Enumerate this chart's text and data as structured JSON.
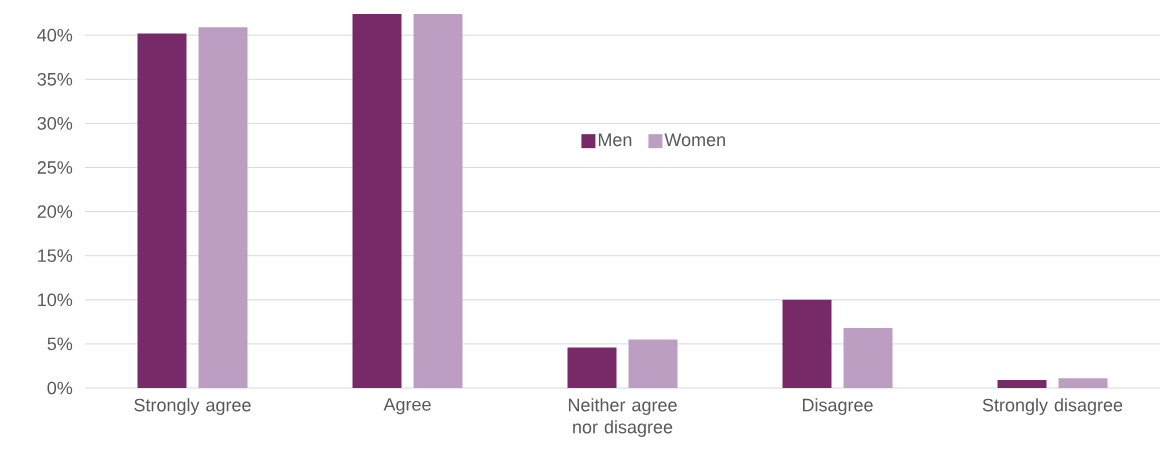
{
  "chart_data": {
    "type": "bar",
    "categories": [
      "Strongly agree",
      "Agree",
      "Neither agree nor disagree",
      "Disagree",
      "Strongly disagree"
    ],
    "series": [
      {
        "name": "Men",
        "color": "#772a67",
        "values": [
          40.2,
          42.4,
          4.6,
          10.0,
          0.9
        ]
      },
      {
        "name": "Women",
        "color": "#bc9ec2",
        "values": [
          40.9,
          42.4,
          5.5,
          6.8,
          1.1
        ]
      }
    ],
    "ylim": [
      0,
      42.4
    ],
    "yticks": [
      {
        "value": 0,
        "label": "0%"
      },
      {
        "value": 5,
        "label": "5%"
      },
      {
        "value": 10,
        "label": "10%"
      },
      {
        "value": 15,
        "label": "15%"
      },
      {
        "value": 20,
        "label": "20%"
      },
      {
        "value": 25,
        "label": "25%"
      },
      {
        "value": 30,
        "label": "30%"
      },
      {
        "value": 35,
        "label": "35%"
      },
      {
        "value": 40,
        "label": "40%"
      }
    ],
    "grid": "y",
    "legend": "center"
  }
}
